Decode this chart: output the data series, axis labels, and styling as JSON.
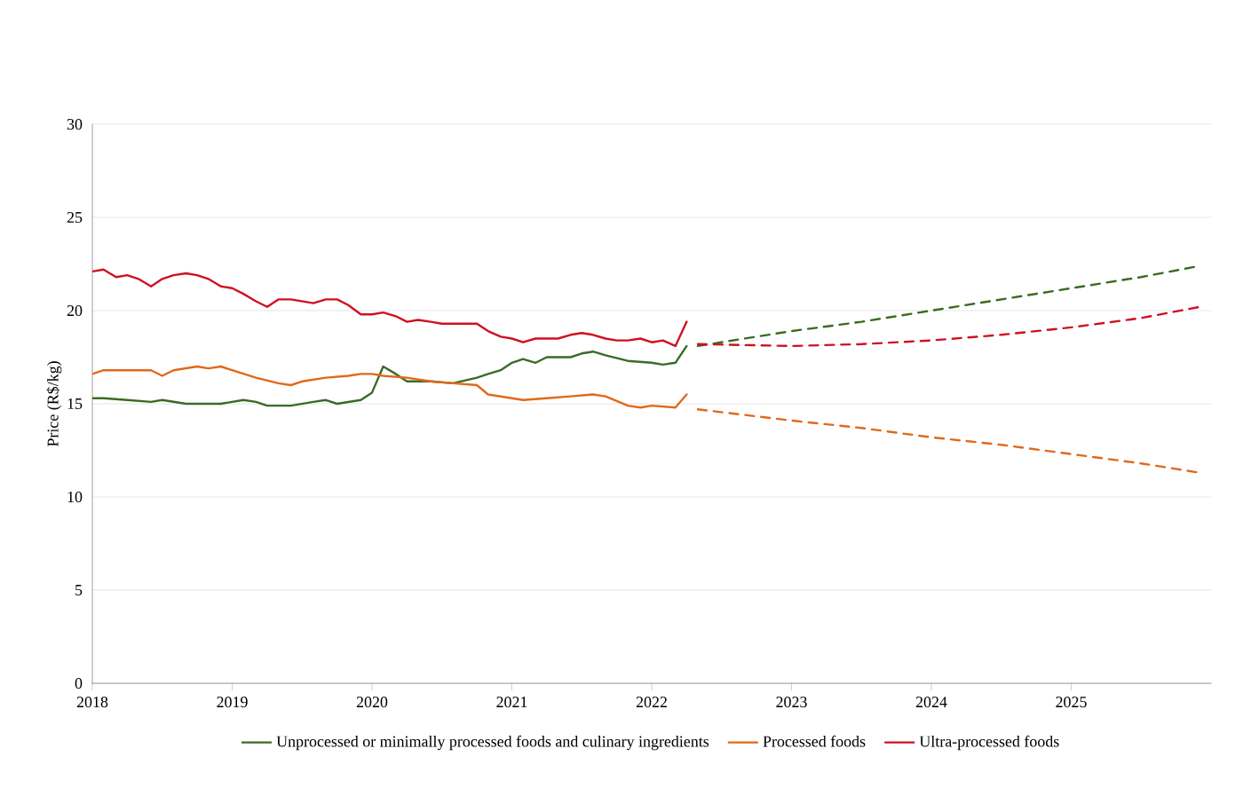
{
  "chart_data": {
    "type": "line",
    "ylabel": "Price (R$/kg)",
    "xlim": [
      2018,
      2026
    ],
    "xticks": [
      2018,
      2019,
      2020,
      2021,
      2022,
      2023,
      2024,
      2025
    ],
    "ylim": [
      0,
      30
    ],
    "yticks": [
      0,
      5,
      10,
      15,
      20,
      25,
      30
    ],
    "grid": "y",
    "legend": "bottom",
    "marker": "none",
    "series": [
      {
        "name": "Unprocessed or minimally processed foods and culinary ingredients",
        "color": "#3a6b24",
        "line_style": "solid",
        "x": [
          2018,
          2018.08,
          2018.25,
          2018.42,
          2018.5,
          2018.67,
          2018.92,
          2019.08,
          2019.17,
          2019.25,
          2019.42,
          2019.58,
          2019.67,
          2019.75,
          2019.92,
          2020.0,
          2020.08,
          2020.17,
          2020.25,
          2020.42,
          2020.58,
          2020.75,
          2020.83,
          2020.92,
          2021.0,
          2021.08,
          2021.17,
          2021.25,
          2021.42,
          2021.5,
          2021.58,
          2021.67,
          2021.83,
          2022.0,
          2022.08,
          2022.17,
          2022.25
        ],
        "values": [
          15.3,
          15.3,
          15.2,
          15.1,
          15.2,
          15.0,
          15.0,
          15.2,
          15.1,
          14.9,
          14.9,
          15.1,
          15.2,
          15.0,
          15.2,
          15.6,
          17.0,
          16.6,
          16.2,
          16.2,
          16.1,
          16.4,
          16.6,
          16.8,
          17.2,
          17.4,
          17.2,
          17.5,
          17.5,
          17.7,
          17.8,
          17.6,
          17.3,
          17.2,
          17.1,
          17.2,
          18.1
        ]
      },
      {
        "name": "Processed foods",
        "color": "#e0691a",
        "line_style": "solid",
        "x": [
          2018,
          2018.08,
          2018.25,
          2018.42,
          2018.5,
          2018.58,
          2018.75,
          2018.83,
          2018.92,
          2019.0,
          2019.17,
          2019.33,
          2019.42,
          2019.5,
          2019.67,
          2019.83,
          2019.92,
          2020.0,
          2020.08,
          2020.25,
          2020.42,
          2020.58,
          2020.75,
          2020.83,
          2021.0,
          2021.08,
          2021.25,
          2021.42,
          2021.58,
          2021.67,
          2021.83,
          2021.92,
          2022.0,
          2022.17,
          2022.25
        ],
        "values": [
          16.6,
          16.8,
          16.8,
          16.8,
          16.5,
          16.8,
          17.0,
          16.9,
          17.0,
          16.8,
          16.4,
          16.1,
          16.0,
          16.2,
          16.4,
          16.5,
          16.6,
          16.6,
          16.5,
          16.4,
          16.2,
          16.1,
          16.0,
          15.5,
          15.3,
          15.2,
          15.3,
          15.4,
          15.5,
          15.4,
          14.9,
          14.8,
          14.9,
          14.8,
          15.5
        ]
      },
      {
        "name": "Ultra-processed foods",
        "color": "#d01020",
        "line_style": "solid",
        "x": [
          2018,
          2018.08,
          2018.17,
          2018.25,
          2018.33,
          2018.42,
          2018.5,
          2018.58,
          2018.67,
          2018.75,
          2018.83,
          2018.92,
          2019.0,
          2019.08,
          2019.17,
          2019.25,
          2019.33,
          2019.42,
          2019.5,
          2019.58,
          2019.67,
          2019.75,
          2019.83,
          2019.92,
          2020.0,
          2020.08,
          2020.17,
          2020.25,
          2020.33,
          2020.42,
          2020.5,
          2020.67,
          2020.75,
          2020.83,
          2020.92,
          2021.0,
          2021.08,
          2021.17,
          2021.33,
          2021.42,
          2021.5,
          2021.58,
          2021.67,
          2021.75,
          2021.83,
          2021.92,
          2022.0,
          2022.08,
          2022.17,
          2022.25
        ],
        "values": [
          22.1,
          22.2,
          21.8,
          21.9,
          21.7,
          21.3,
          21.7,
          21.9,
          22.0,
          21.9,
          21.7,
          21.3,
          21.2,
          20.9,
          20.5,
          20.2,
          20.6,
          20.6,
          20.5,
          20.4,
          20.6,
          20.6,
          20.3,
          19.8,
          19.8,
          19.9,
          19.7,
          19.4,
          19.5,
          19.4,
          19.3,
          19.3,
          19.3,
          18.9,
          18.6,
          18.5,
          18.3,
          18.5,
          18.5,
          18.7,
          18.8,
          18.7,
          18.5,
          18.4,
          18.4,
          18.5,
          18.3,
          18.4,
          18.1,
          19.4
        ]
      },
      {
        "color": "#3a6b24",
        "line_style": "dashed",
        "x": [
          2022.33,
          2023,
          2023.5,
          2024,
          2024.5,
          2025,
          2025.5,
          2025.92
        ],
        "values": [
          18.1,
          18.9,
          19.4,
          20.0,
          20.6,
          21.2,
          21.8,
          22.4
        ]
      },
      {
        "color": "#e0691a",
        "line_style": "dashed",
        "x": [
          2022.33,
          2023,
          2023.5,
          2024,
          2024.5,
          2025,
          2025.5,
          2025.92
        ],
        "values": [
          14.7,
          14.1,
          13.7,
          13.2,
          12.8,
          12.3,
          11.8,
          11.3
        ]
      },
      {
        "color": "#d01020",
        "line_style": "dashed",
        "x": [
          2022.33,
          2023,
          2023.5,
          2024,
          2024.5,
          2025,
          2025.5,
          2025.92
        ],
        "values": [
          18.2,
          18.1,
          18.2,
          18.4,
          18.7,
          19.1,
          19.6,
          20.2
        ]
      }
    ]
  }
}
